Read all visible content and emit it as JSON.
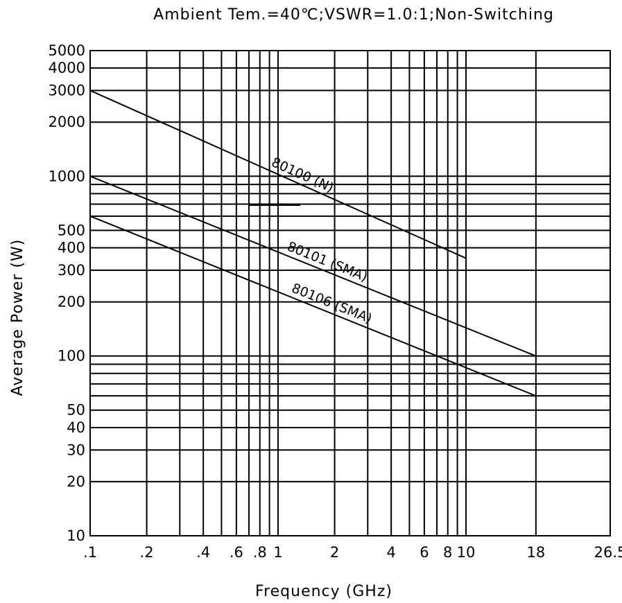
{
  "chart_data": {
    "type": "line",
    "title": "Ambient  Tem.=40℃;VSWR=1.0:1;Non-Switching",
    "xlabel": "Frequency (GHz)",
    "ylabel": "Average Power (W)",
    "x_scale": "log",
    "y_scale": "log",
    "xlim": [
      0.1,
      26.5
    ],
    "ylim": [
      10,
      5000
    ],
    "grid": true,
    "x_ticks": [
      {
        "value": 0.1,
        "label": ".1"
      },
      {
        "value": 0.2,
        "label": ".2"
      },
      {
        "value": 0.4,
        "label": ".4"
      },
      {
        "value": 0.6,
        "label": ".6"
      },
      {
        "value": 0.8,
        "label": ".8"
      },
      {
        "value": 1,
        "label": "1"
      },
      {
        "value": 2,
        "label": "2"
      },
      {
        "value": 4,
        "label": "4"
      },
      {
        "value": 6,
        "label": "6"
      },
      {
        "value": 8,
        "label": "8"
      },
      {
        "value": 10,
        "label": "10"
      },
      {
        "value": 18,
        "label": "18"
      },
      {
        "value": 26.5,
        "label": "26.5"
      }
    ],
    "x_grid": [
      0.1,
      0.2,
      0.3,
      0.4,
      0.5,
      0.6,
      0.7,
      0.8,
      0.9,
      1,
      2,
      3,
      4,
      5,
      6,
      7,
      8,
      9,
      10,
      18,
      26.5
    ],
    "y_ticks": [
      {
        "value": 10,
        "label": "10"
      },
      {
        "value": 20,
        "label": "20"
      },
      {
        "value": 30,
        "label": "30"
      },
      {
        "value": 40,
        "label": "40"
      },
      {
        "value": 50,
        "label": "50"
      },
      {
        "value": 100,
        "label": "100"
      },
      {
        "value": 200,
        "label": "200"
      },
      {
        "value": 300,
        "label": "300"
      },
      {
        "value": 400,
        "label": "400"
      },
      {
        "value": 500,
        "label": "500"
      },
      {
        "value": 1000,
        "label": "1000"
      },
      {
        "value": 2000,
        "label": "2000"
      },
      {
        "value": 3000,
        "label": "3000"
      },
      {
        "value": 4000,
        "label": "4000"
      },
      {
        "value": 5000,
        "label": "5000"
      }
    ],
    "y_grid": [
      10,
      20,
      30,
      40,
      50,
      60,
      70,
      80,
      90,
      100,
      200,
      300,
      400,
      500,
      600,
      700,
      800,
      900,
      1000,
      2000,
      3000,
      4000,
      5000
    ],
    "series": [
      {
        "name": "80100 (N)",
        "x": [
          0.1,
          10
        ],
        "y": [
          3000,
          350
        ]
      },
      {
        "name": "80101 (SMA)",
        "x": [
          0.1,
          18
        ],
        "y": [
          1000,
          100
        ]
      },
      {
        "name": "80106 (SMA)",
        "x": [
          0.1,
          18
        ],
        "y": [
          600,
          60
        ]
      }
    ]
  }
}
